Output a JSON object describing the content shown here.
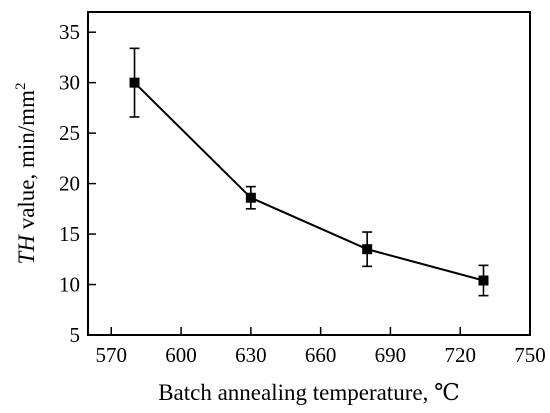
{
  "chart_data": {
    "type": "line",
    "title": "",
    "xlabel": "Batch annealing temperature, ℃",
    "ylabel": {
      "italic": "TH",
      "text": " value, min/mm",
      "superscript": "2"
    },
    "xlim": [
      560,
      750
    ],
    "ylim": [
      5,
      37
    ],
    "xticks": [
      570,
      600,
      630,
      660,
      690,
      720,
      750
    ],
    "yticks": [
      5,
      10,
      15,
      20,
      25,
      30,
      35
    ],
    "grid": false,
    "legend": "none",
    "series": [
      {
        "points": [
          {
            "x": 580,
            "y": 30.0,
            "err": 3.4
          },
          {
            "x": 630,
            "y": 18.6,
            "err": 1.1
          },
          {
            "x": 680,
            "y": 13.5,
            "err": 1.7
          },
          {
            "x": 730,
            "y": 10.4,
            "err": 1.5
          }
        ]
      }
    ]
  }
}
